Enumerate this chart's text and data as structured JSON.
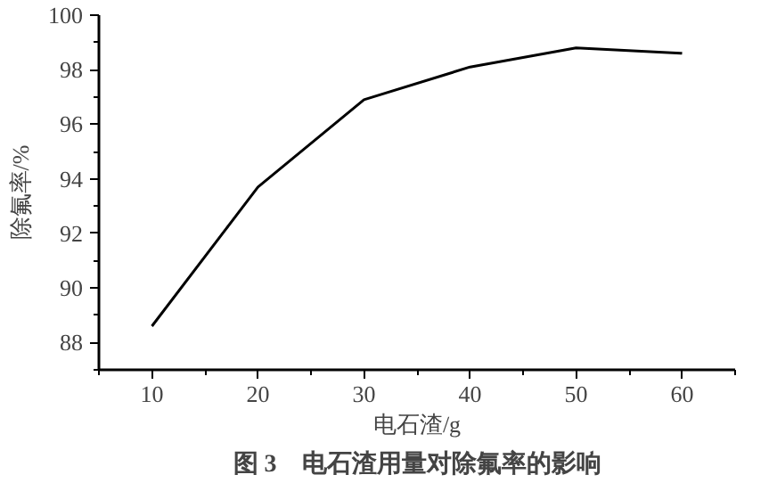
{
  "chart_data": {
    "type": "line",
    "xlabel": "电石渣/g",
    "ylabel": "除氟率/%",
    "annotations": [
      "图 3　电石渣用量对除氟率的影响"
    ],
    "x": [
      10,
      20,
      30,
      40,
      50,
      60
    ],
    "series": [
      {
        "color": "#000000",
        "values": [
          88.6,
          93.7,
          96.9,
          98.1,
          98.8,
          98.6
        ]
      }
    ],
    "xlim": [
      5,
      65
    ],
    "ylim": [
      87,
      100
    ],
    "xticks": [
      {
        "value": 5,
        "label": null
      },
      10,
      {
        "value": 15,
        "label": null
      },
      20,
      {
        "value": 25,
        "label": null
      },
      30,
      {
        "value": 35,
        "label": null
      },
      40,
      {
        "value": 45,
        "label": null
      },
      50,
      {
        "value": 55,
        "label": null
      },
      60,
      {
        "value": 65,
        "label": null
      }
    ],
    "yticks": [
      {
        "value": 87,
        "label": null
      },
      88,
      {
        "value": 89,
        "label": null
      },
      90,
      {
        "value": 91,
        "label": null
      },
      92,
      {
        "value": 93,
        "label": null
      },
      94,
      {
        "value": 95,
        "label": null
      },
      96,
      {
        "value": 97,
        "label": null
      },
      98,
      {
        "value": 99,
        "label": null
      },
      100
    ],
    "grid": false,
    "marker": "none",
    "line_style": "solid"
  }
}
